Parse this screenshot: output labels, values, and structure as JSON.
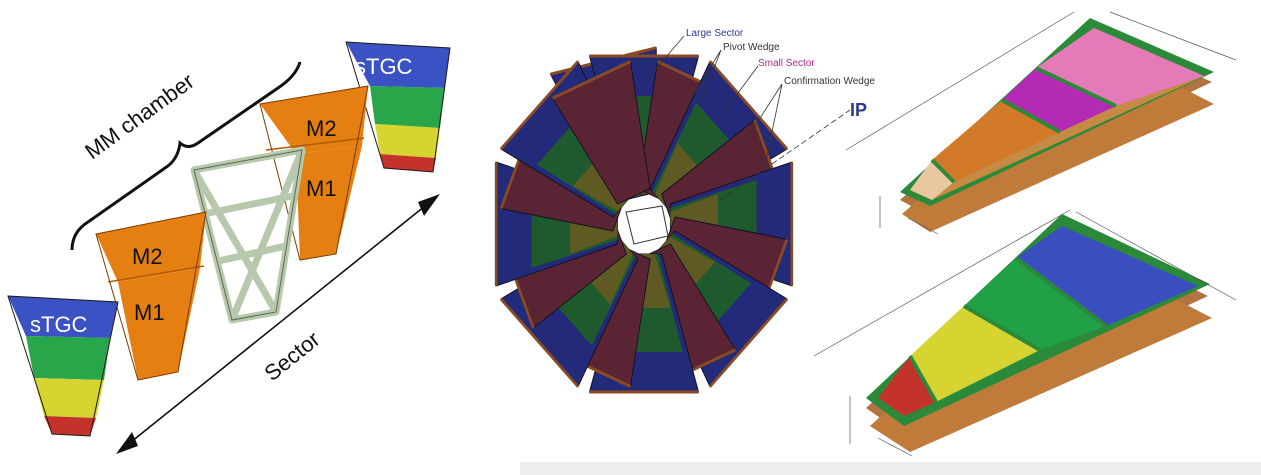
{
  "left_panel": {
    "mm_chamber_label": "MM chamber",
    "stgc_top_label": "sTGC",
    "stgc_bottom_label": "sTGC",
    "m2_back_label": "M2",
    "m1_back_label": "M1",
    "m2_front_label": "M2",
    "m1_front_label": "M1",
    "sector_label": "Sector"
  },
  "center_panel": {
    "large_sector_label": "Large Sector",
    "pivot_wedge_label": "Pivot Wedge",
    "small_sector_label": "Small Sector",
    "confirmation_wedge_label": "Confirmation Wedge",
    "ip_label": "IP"
  },
  "colors": {
    "stgc_blue": "#3a52c4",
    "stgc_green": "#2aa64a",
    "stgc_yellow": "#d6d430",
    "stgc_red": "#c4322c",
    "mm_orange": "#e57f12",
    "frame_green": "#c9d8c0",
    "wheel_blue": "#232a7a",
    "wheel_green": "#1f5a2e",
    "wheel_olive": "#5e5a22",
    "wheel_maroon": "#5a2434",
    "label_blue": "#2b3a8c",
    "label_magenta": "#b0268c",
    "pink": "#e57ab8",
    "magenta": "#b42ab4",
    "brown": "#a8642a",
    "wood": "#c07a3a"
  }
}
